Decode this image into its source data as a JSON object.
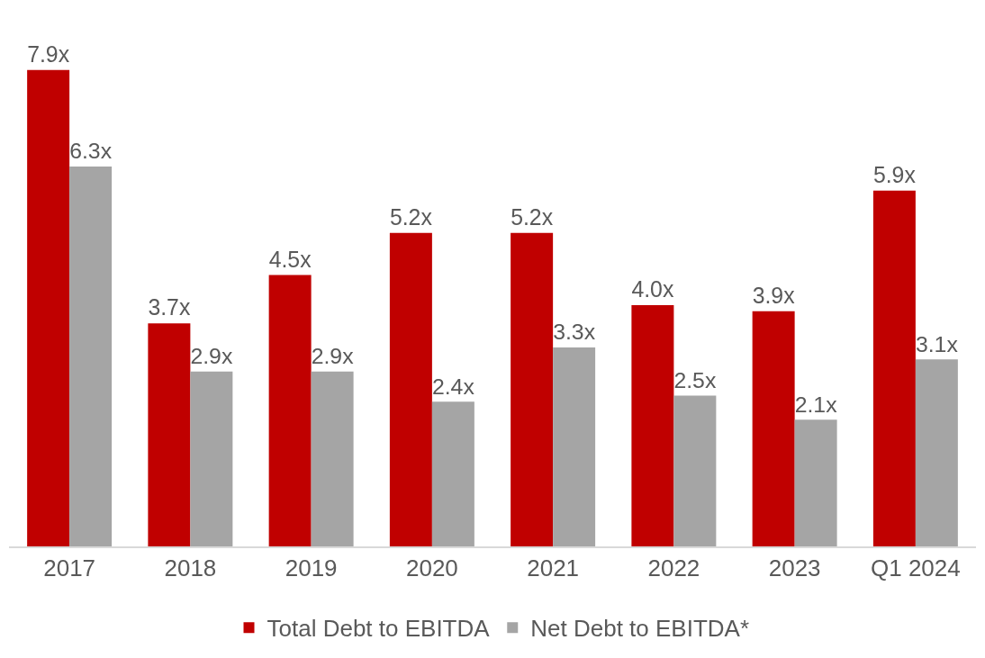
{
  "chart_data": {
    "type": "bar",
    "categories": [
      "2017",
      "2018",
      "2019",
      "2020",
      "2021",
      "2022",
      "2023",
      "Q1 2024"
    ],
    "series": [
      {
        "name": "Total Debt to EBITDA",
        "color": "#c00000",
        "values": [
          7.9,
          3.7,
          4.5,
          5.2,
          5.2,
          4.0,
          3.9,
          5.9
        ],
        "value_labels": [
          "7.9x",
          "3.7x",
          "4.5x",
          "5.2x",
          "5.2x",
          "4.0x",
          "3.9x",
          "5.9x"
        ]
      },
      {
        "name": "Net Debt to EBITDA*",
        "color": "#a5a5a5",
        "values": [
          6.3,
          2.9,
          2.9,
          2.4,
          3.3,
          2.5,
          2.1,
          3.1
        ],
        "value_labels": [
          "6.3x",
          "2.9x",
          "2.9x",
          "2.4x",
          "3.3x",
          "2.5x",
          "2.1x",
          "3.1x"
        ]
      }
    ],
    "legend": "bottom",
    "tick_labels": "x"
  }
}
